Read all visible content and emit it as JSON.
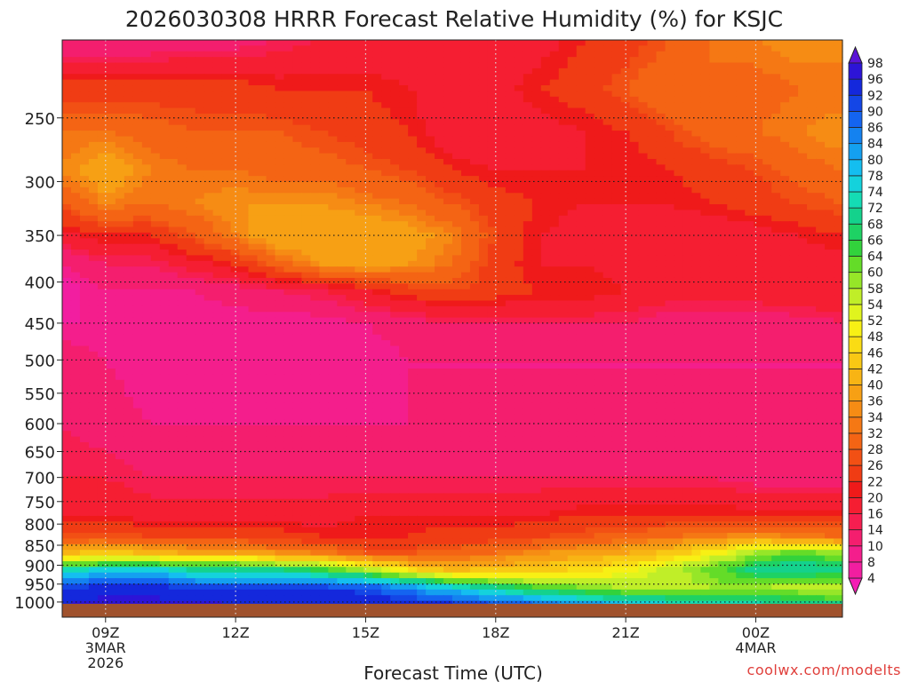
{
  "chart_data": {
    "type": "heatmap",
    "title": "2026030308 HRRR Forecast Relative Humidity (%) for KSJC",
    "xlabel": "Forecast Time (UTC)",
    "ylabel": "",
    "credit": "coolwx.com/modelts",
    "x_ticks": [
      {
        "hour": 9,
        "lines": [
          "09Z",
          "3MAR",
          "2026"
        ]
      },
      {
        "hour": 12,
        "lines": [
          "12Z"
        ]
      },
      {
        "hour": 15,
        "lines": [
          "15Z"
        ]
      },
      {
        "hour": 18,
        "lines": [
          "18Z"
        ]
      },
      {
        "hour": 21,
        "lines": [
          "21Z"
        ]
      },
      {
        "hour": 24,
        "lines": [
          "00Z",
          "4MAR"
        ]
      }
    ],
    "xlim": [
      8,
      26
    ],
    "y_ticks": [
      250,
      300,
      350,
      400,
      450,
      500,
      550,
      600,
      650,
      700,
      750,
      800,
      850,
      900,
      950,
      1000
    ],
    "ylim": [
      1013,
      200
    ],
    "y_scale": "log",
    "grid": true,
    "colorbar_levels": [
      4,
      8,
      10,
      14,
      16,
      20,
      22,
      26,
      28,
      32,
      34,
      36,
      40,
      42,
      46,
      48,
      52,
      54,
      58,
      60,
      64,
      66,
      68,
      72,
      74,
      78,
      80,
      84,
      86,
      90,
      92,
      96,
      98
    ],
    "colorbar_colors": [
      "#f51eb4",
      "#f21ea0",
      "#f41e8c",
      "#f41e6e",
      "#f61e50",
      "#f51e32",
      "#ef1a1a",
      "#f03c14",
      "#f25014",
      "#f46414",
      "#f57814",
      "#f68c14",
      "#f7a014",
      "#f8b414",
      "#f9c814",
      "#fadc14",
      "#f8f014",
      "#e0f41e",
      "#c0ee28",
      "#96e628",
      "#64dc28",
      "#32d23c",
      "#1ed264",
      "#14d28c",
      "#14dcb4",
      "#14d2dc",
      "#14bef0",
      "#14a0f0",
      "#1482f0",
      "#1464f0",
      "#1446e6",
      "#1428dc",
      "#2d14d7",
      "#5a14d7"
    ],
    "columns": [
      {
        "x": 8.0,
        "rh": [
          10,
          24,
          32,
          34,
          28,
          18,
          10,
          6,
          8,
          12,
          14,
          16,
          20,
          28,
          42,
          72,
          92,
          96
        ]
      },
      {
        "x": 9.0,
        "rh": [
          10,
          24,
          32,
          40,
          34,
          22,
          14,
          10,
          8,
          10,
          12,
          16,
          20,
          28,
          44,
          74,
          94,
          98
        ]
      },
      {
        "x": 10.0,
        "rh": [
          10,
          24,
          30,
          34,
          32,
          22,
          14,
          10,
          8,
          8,
          10,
          14,
          18,
          26,
          42,
          76,
          94,
          98
        ]
      },
      {
        "x": 11.0,
        "rh": [
          12,
          24,
          28,
          32,
          34,
          28,
          18,
          10,
          8,
          8,
          10,
          14,
          18,
          24,
          40,
          70,
          92,
          98
        ]
      },
      {
        "x": 12.0,
        "rh": [
          12,
          24,
          28,
          32,
          36,
          34,
          22,
          12,
          8,
          8,
          10,
          14,
          18,
          24,
          40,
          70,
          92,
          96
        ]
      },
      {
        "x": 13.0,
        "rh": [
          14,
          22,
          28,
          30,
          36,
          40,
          30,
          14,
          8,
          8,
          10,
          14,
          18,
          24,
          36,
          68,
          92,
          96
        ]
      },
      {
        "x": 14.0,
        "rh": [
          16,
          22,
          26,
          30,
          36,
          40,
          36,
          16,
          8,
          8,
          10,
          14,
          18,
          22,
          34,
          64,
          92,
          96
        ]
      },
      {
        "x": 15.0,
        "rh": [
          16,
          22,
          24,
          28,
          34,
          40,
          38,
          20,
          10,
          8,
          10,
          14,
          20,
          22,
          28,
          56,
          90,
          96
        ]
      },
      {
        "x": 16.0,
        "rh": [
          16,
          20,
          22,
          26,
          32,
          38,
          36,
          24,
          12,
          10,
          10,
          14,
          20,
          22,
          28,
          46,
          84,
          96
        ]
      },
      {
        "x": 17.0,
        "rh": [
          16,
          18,
          16,
          22,
          28,
          34,
          32,
          26,
          14,
          10,
          10,
          14,
          20,
          24,
          30,
          40,
          76,
          94
        ]
      },
      {
        "x": 18.0,
        "rh": [
          16,
          18,
          16,
          20,
          24,
          26,
          24,
          24,
          14,
          10,
          10,
          14,
          20,
          24,
          32,
          42,
          70,
          92
        ]
      },
      {
        "x": 19.0,
        "rh": [
          18,
          22,
          18,
          20,
          22,
          20,
          20,
          22,
          14,
          10,
          10,
          14,
          20,
          26,
          36,
          44,
          64,
          88
        ]
      },
      {
        "x": 20.0,
        "rh": [
          22,
          24,
          20,
          20,
          20,
          18,
          20,
          22,
          14,
          10,
          10,
          14,
          22,
          28,
          38,
          46,
          60,
          84
        ]
      },
      {
        "x": 21.0,
        "rh": [
          24,
          28,
          22,
          20,
          20,
          16,
          18,
          20,
          14,
          10,
          10,
          14,
          22,
          30,
          40,
          50,
          58,
          80
        ]
      },
      {
        "x": 22.0,
        "rh": [
          28,
          32,
          26,
          22,
          20,
          16,
          16,
          18,
          12,
          10,
          10,
          14,
          22,
          32,
          44,
          56,
          56,
          76
        ]
      },
      {
        "x": 23.0,
        "rh": [
          32,
          32,
          30,
          24,
          22,
          16,
          16,
          18,
          12,
          10,
          10,
          14,
          22,
          34,
          50,
          62,
          58,
          74
        ]
      },
      {
        "x": 24.0,
        "rh": [
          34,
          30,
          32,
          26,
          24,
          18,
          16,
          18,
          12,
          10,
          10,
          12,
          22,
          36,
          60,
          70,
          58,
          74
        ]
      },
      {
        "x": 25.0,
        "rh": [
          36,
          32,
          34,
          30,
          26,
          20,
          18,
          20,
          12,
          10,
          10,
          12,
          22,
          34,
          62,
          72,
          56,
          72
        ]
      },
      {
        "x": 26.0,
        "rh": [
          36,
          32,
          36,
          32,
          28,
          22,
          18,
          20,
          14,
          10,
          10,
          12,
          22,
          32,
          60,
          70,
          54,
          70
        ]
      }
    ],
    "column_levels": [
      200,
      230,
      260,
      290,
      320,
      350,
      380,
      410,
      450,
      500,
      600,
      700,
      780,
      830,
      870,
      910,
      960,
      1010
    ],
    "ground_color": "#a0522d",
    "ground_level": 1000
  }
}
